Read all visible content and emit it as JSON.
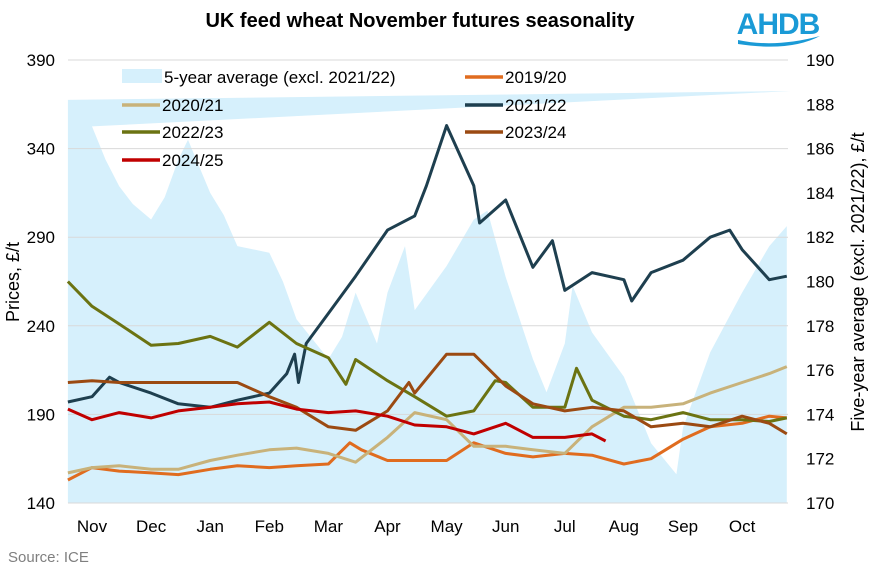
{
  "chart_data": {
    "type": "line",
    "title": "UK feed wheat November futures seasonality",
    "ylabel": "Prices, £/t",
    "y2label": "Five-year average (excl. 2021/22), £/t",
    "ylim": [
      140,
      390
    ],
    "yticks": [
      140,
      190,
      240,
      290,
      340,
      390
    ],
    "y2lim": [
      170,
      190
    ],
    "y2ticks": [
      170,
      172,
      174,
      176,
      178,
      180,
      182,
      184,
      186,
      188,
      190
    ],
    "xticks": [
      "Nov",
      "Dec",
      "Jan",
      "Feb",
      "Mar",
      "Apr",
      "May",
      "Jun",
      "Jul",
      "Aug",
      "Sep",
      "Oct"
    ],
    "grid": true,
    "legend_placement": "top-left",
    "source": "Source: ICE",
    "logo_text": "AHDB",
    "colors": {
      "logo": "#1a9ad6",
      "area": "#d6f0fc",
      "grid": "#d9d9d9"
    },
    "area_series": {
      "name": "5-year average (excl. 2021/22)",
      "axis": "right",
      "points": [
        [
          "Oct 19",
          188.2
        ],
        [
          "Oct 26",
          188.6
        ],
        [
          "Nov 01",
          187.0
        ],
        [
          "Nov 08",
          185.5
        ],
        [
          "Nov 15",
          184.3
        ],
        [
          "Nov 22",
          183.5
        ],
        [
          "Dec 01",
          182.8
        ],
        [
          "Dec 08",
          183.8
        ],
        [
          "Dec 15",
          185.5
        ],
        [
          "Dec 20",
          186.4
        ],
        [
          "Jan 01",
          184.0
        ],
        [
          "Jan 08",
          183.0
        ],
        [
          "Jan 15",
          181.6
        ],
        [
          "Feb 01",
          181.3
        ],
        [
          "Feb 08",
          180.0
        ],
        [
          "Feb 15",
          178.3
        ],
        [
          "Mar 01",
          176.5
        ],
        [
          "Mar 08",
          177.5
        ],
        [
          "Mar 15",
          179.5
        ],
        [
          "Mar 26",
          177.2
        ],
        [
          "Apr 01",
          179.5
        ],
        [
          "Apr 10",
          181.6
        ],
        [
          "Apr 15",
          178.7
        ],
        [
          "May 01",
          180.7
        ],
        [
          "May 15",
          182.8
        ],
        [
          "May 22",
          183.2
        ],
        [
          "Jun 01",
          180.2
        ],
        [
          "Jun 15",
          176.5
        ],
        [
          "Jun 22",
          175.0
        ],
        [
          "Jul 01",
          177.2
        ],
        [
          "Jul 05",
          179.8
        ],
        [
          "Jul 15",
          177.7
        ],
        [
          "Aug 01",
          175.7
        ],
        [
          "Aug 15",
          172.7
        ],
        [
          "Aug 28",
          171.3
        ],
        [
          "Sep 01",
          173.4
        ],
        [
          "Sep 15",
          176.8
        ],
        [
          "Oct 01",
          179.5
        ],
        [
          "Oct 15",
          181.6
        ],
        [
          "Oct 24",
          182.5
        ]
      ]
    },
    "series": [
      {
        "name": "2019/20",
        "color": "#e06c1f",
        "points": [
          [
            "Oct 19",
            153
          ],
          [
            "Nov 01",
            160
          ],
          [
            "Nov 15",
            158
          ],
          [
            "Dec 01",
            157
          ],
          [
            "Dec 15",
            156
          ],
          [
            "Jan 01",
            159
          ],
          [
            "Jan 15",
            161
          ],
          [
            "Feb 01",
            160
          ],
          [
            "Feb 15",
            161
          ],
          [
            "Mar 01",
            162
          ],
          [
            "Mar 12",
            174
          ],
          [
            "Mar 18",
            170
          ],
          [
            "Apr 01",
            164
          ],
          [
            "Apr 15",
            164
          ],
          [
            "May 01",
            164
          ],
          [
            "May 15",
            174
          ],
          [
            "Jun 01",
            168
          ],
          [
            "Jun 15",
            166
          ],
          [
            "Jul 01",
            168
          ],
          [
            "Jul 15",
            167
          ],
          [
            "Aug 01",
            162
          ],
          [
            "Aug 15",
            165
          ],
          [
            "Sep 01",
            176
          ],
          [
            "Sep 15",
            183
          ],
          [
            "Oct 01",
            185
          ],
          [
            "Oct 15",
            189
          ],
          [
            "Oct 24",
            188
          ]
        ]
      },
      {
        "name": "2020/21",
        "color": "#c8b27a",
        "points": [
          [
            "Oct 19",
            157
          ],
          [
            "Nov 01",
            160
          ],
          [
            "Nov 15",
            161
          ],
          [
            "Dec 01",
            159
          ],
          [
            "Dec 15",
            159
          ],
          [
            "Jan 01",
            164
          ],
          [
            "Jan 15",
            167
          ],
          [
            "Feb 01",
            170
          ],
          [
            "Feb 15",
            171
          ],
          [
            "Mar 01",
            168
          ],
          [
            "Mar 15",
            163
          ],
          [
            "Apr 01",
            177
          ],
          [
            "Apr 15",
            191
          ],
          [
            "May 01",
            187
          ],
          [
            "May 15",
            172
          ],
          [
            "Jun 01",
            172
          ],
          [
            "Jun 15",
            170
          ],
          [
            "Jul 01",
            168
          ],
          [
            "Jul 15",
            183
          ],
          [
            "Aug 01",
            194
          ],
          [
            "Aug 15",
            194
          ],
          [
            "Sep 01",
            196
          ],
          [
            "Sep 15",
            202
          ],
          [
            "Oct 01",
            208
          ],
          [
            "Oct 15",
            213
          ],
          [
            "Oct 24",
            217
          ]
        ]
      },
      {
        "name": "2021/22",
        "color": "#1e3f4f",
        "points": [
          [
            "Oct 19",
            197
          ],
          [
            "Nov 01",
            200
          ],
          [
            "Nov 10",
            211
          ],
          [
            "Nov 15",
            208
          ],
          [
            "Dec 01",
            202
          ],
          [
            "Dec 15",
            196
          ],
          [
            "Jan 01",
            194
          ],
          [
            "Jan 15",
            198
          ],
          [
            "Feb 01",
            202
          ],
          [
            "Feb 10",
            213
          ],
          [
            "Feb 14",
            224
          ],
          [
            "Feb 16",
            208
          ],
          [
            "Feb 20",
            230
          ],
          [
            "Mar 01",
            247
          ],
          [
            "Mar 15",
            268
          ],
          [
            "Apr 01",
            294
          ],
          [
            "Apr 15",
            302
          ],
          [
            "Apr 21",
            319
          ],
          [
            "May 01",
            353
          ],
          [
            "May 15",
            319
          ],
          [
            "May 18",
            298
          ],
          [
            "Jun 01",
            311
          ],
          [
            "Jun 15",
            273
          ],
          [
            "Jun 25",
            288
          ],
          [
            "Jul 01",
            260
          ],
          [
            "Jul 15",
            270
          ],
          [
            "Aug 01",
            266
          ],
          [
            "Aug 05",
            254
          ],
          [
            "Aug 15",
            270
          ],
          [
            "Sep 01",
            277
          ],
          [
            "Sep 15",
            290
          ],
          [
            "Sep 25",
            294
          ],
          [
            "Oct 01",
            283
          ],
          [
            "Oct 15",
            266
          ],
          [
            "Oct 24",
            268
          ]
        ]
      },
      {
        "name": "2022/23",
        "color": "#6b7312",
        "points": [
          [
            "Oct 19",
            265
          ],
          [
            "Nov 01",
            251
          ],
          [
            "Nov 15",
            241
          ],
          [
            "Dec 01",
            229
          ],
          [
            "Dec 15",
            230
          ],
          [
            "Jan 01",
            234
          ],
          [
            "Jan 15",
            228
          ],
          [
            "Feb 01",
            242
          ],
          [
            "Feb 15",
            230
          ],
          [
            "Mar 01",
            222
          ],
          [
            "Mar 10",
            207
          ],
          [
            "Mar 15",
            221
          ],
          [
            "Apr 01",
            209
          ],
          [
            "Apr 15",
            200
          ],
          [
            "May 01",
            189
          ],
          [
            "May 15",
            192
          ],
          [
            "May 26",
            209
          ],
          [
            "Jun 01",
            208
          ],
          [
            "Jun 15",
            194
          ],
          [
            "Jul 01",
            194
          ],
          [
            "Jul 07",
            216
          ],
          [
            "Jul 15",
            198
          ],
          [
            "Aug 01",
            189
          ],
          [
            "Aug 15",
            187
          ],
          [
            "Sep 01",
            191
          ],
          [
            "Sep 15",
            187
          ],
          [
            "Oct 01",
            187
          ],
          [
            "Oct 15",
            186
          ],
          [
            "Oct 24",
            188
          ]
        ]
      },
      {
        "name": "2023/24",
        "color": "#9b4a12",
        "points": [
          [
            "Oct 19",
            208
          ],
          [
            "Nov 01",
            209
          ],
          [
            "Nov 15",
            208
          ],
          [
            "Dec 01",
            208
          ],
          [
            "Dec 15",
            208
          ],
          [
            "Jan 01",
            208
          ],
          [
            "Jan 15",
            208
          ],
          [
            "Feb 01",
            200
          ],
          [
            "Feb 15",
            194
          ],
          [
            "Mar 01",
            183
          ],
          [
            "Mar 15",
            181
          ],
          [
            "Apr 01",
            192
          ],
          [
            "Apr 12",
            208
          ],
          [
            "Apr 15",
            202
          ],
          [
            "May 01",
            224
          ],
          [
            "May 15",
            224
          ],
          [
            "Jun 01",
            206
          ],
          [
            "Jun 15",
            196
          ],
          [
            "Jul 01",
            192
          ],
          [
            "Jul 15",
            194
          ],
          [
            "Aug 01",
            192
          ],
          [
            "Aug 15",
            183
          ],
          [
            "Sep 01",
            185
          ],
          [
            "Sep 15",
            183
          ],
          [
            "Oct 01",
            189
          ],
          [
            "Oct 15",
            185
          ],
          [
            "Oct 24",
            179
          ]
        ]
      },
      {
        "name": "2024/25",
        "color": "#c00000",
        "points": [
          [
            "Oct 19",
            193
          ],
          [
            "Nov 01",
            187
          ],
          [
            "Nov 15",
            191
          ],
          [
            "Dec 01",
            188
          ],
          [
            "Dec 15",
            192
          ],
          [
            "Jan 01",
            194
          ],
          [
            "Jan 15",
            196
          ],
          [
            "Feb 01",
            197
          ],
          [
            "Feb 15",
            193
          ],
          [
            "Mar 01",
            191
          ],
          [
            "Mar 15",
            192
          ],
          [
            "Apr 01",
            189
          ],
          [
            "Apr 15",
            184
          ],
          [
            "May 01",
            183
          ],
          [
            "May 15",
            179
          ],
          [
            "Jun 01",
            185
          ],
          [
            "Jun 15",
            177
          ],
          [
            "Jul 01",
            177
          ],
          [
            "Jul 15",
            179
          ],
          [
            "Jul 22",
            175
          ]
        ]
      }
    ]
  }
}
